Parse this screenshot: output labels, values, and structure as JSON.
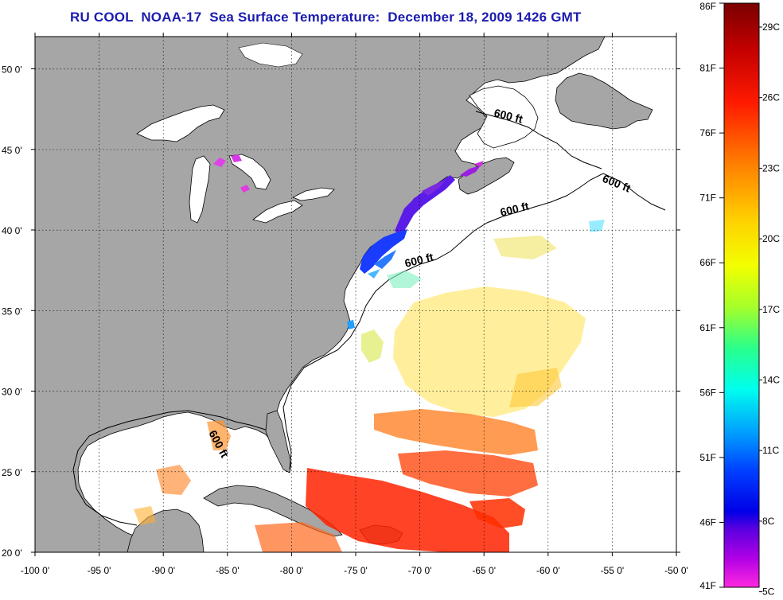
{
  "title": "RU COOL  NOAA-17  Sea Surface Temperature:  December 18, 2009 1426 GMT",
  "map": {
    "lon_range": [
      -100,
      -50
    ],
    "lat_range": [
      20,
      52
    ],
    "lon_ticks": [
      "-100 0'",
      "-95 0'",
      "-90 0'",
      "-85 0'",
      "-80 0'",
      "-75 0'",
      "-70 0'",
      "-65 0'",
      "-60 0'",
      "-55 0'",
      "-50 0'"
    ],
    "lat_ticks": [
      "20 0'",
      "25 0'",
      "30 0'",
      "35 0'",
      "40 0'",
      "45 0'",
      "50 0'"
    ],
    "grid": "dotted",
    "colors": {
      "land": "#a6a6a6",
      "water": "#ffffff",
      "coast": "#000000"
    },
    "isobath_label": "600 ft"
  },
  "colorbar": {
    "f_labels": [
      "86F",
      "81F",
      "76F",
      "71F",
      "66F",
      "61F",
      "56F",
      "51F",
      "46F",
      "41F"
    ],
    "c_labels": [
      "29C",
      "26C",
      "23C",
      "20C",
      "17C",
      "14C",
      "11C",
      "8C",
      "5C"
    ]
  }
}
